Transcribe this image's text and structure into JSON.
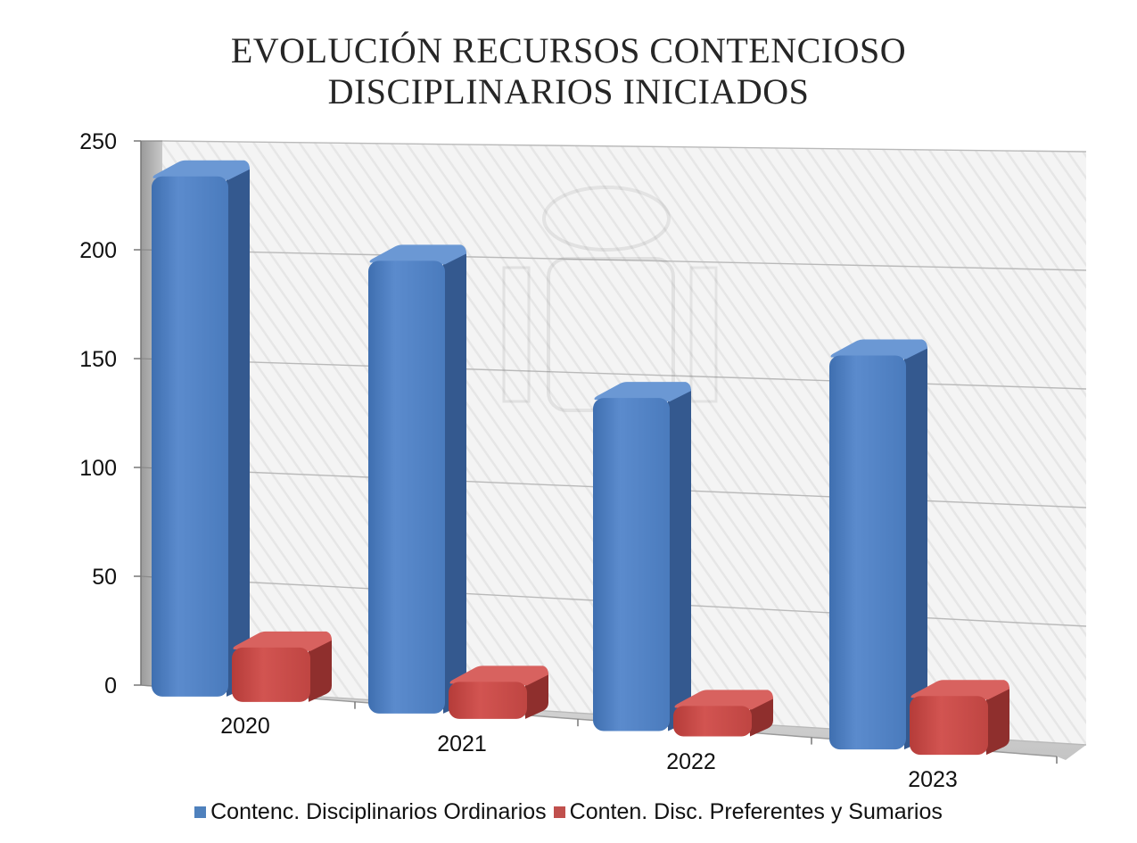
{
  "chart_data": {
    "type": "bar",
    "title": [
      "EVOLUCIÓN RECURSOS CONTENCIOSO",
      "DISCIPLINARIOS INICIADOS"
    ],
    "categories": [
      "2020",
      "2021",
      "2022",
      "2023"
    ],
    "series": [
      {
        "name": "Contenc. Disciplinarios Ordinarios",
        "values": [
          239,
          208,
          153,
          181
        ],
        "color": "#4F81BD"
      },
      {
        "name": "Conten. Disc. Preferentes y Sumarios",
        "values": [
          25,
          17,
          14,
          27
        ],
        "color": "#C0504D"
      }
    ],
    "ylim": [
      0,
      250
    ],
    "yticks": [
      0,
      50,
      100,
      150,
      200,
      250
    ],
    "grid": true,
    "legend": "bottom",
    "style": "3d-column"
  }
}
